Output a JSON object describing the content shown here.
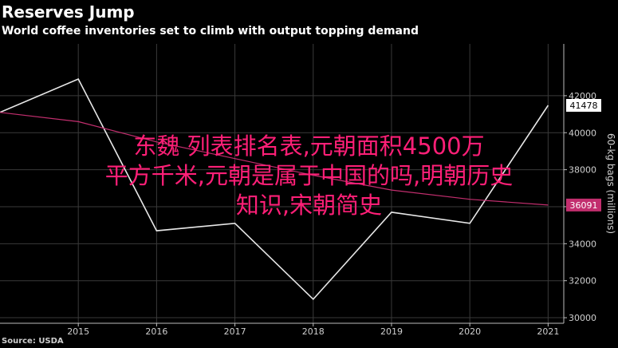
{
  "header": {
    "title": "Reserves Jump",
    "subtitle": "World coffee inventories set to climb with output topping demand"
  },
  "footer": {
    "source": "Source: USDA"
  },
  "overlay": {
    "lines": [
      "东魏 列表排名表,元朝面积4500万",
      "平方千米,元朝是属于中国的吗,明朝历史",
      "知识,宋朝简史"
    ],
    "color": "#ff1f77"
  },
  "chart_data": {
    "type": "line",
    "x": [
      2014,
      2015,
      2016,
      2017,
      2018,
      2019,
      2020,
      2021
    ],
    "xticks": [
      "2015",
      "2016",
      "2017",
      "2018",
      "2019",
      "2020",
      "2021"
    ],
    "xlim": [
      2014,
      2021.2
    ],
    "ylim": [
      29700,
      44800
    ],
    "yticks": [
      "30000",
      "32000",
      "34000",
      "36000",
      "38000",
      "40000",
      "42000"
    ],
    "ylabel": "60-kg bags (millions)",
    "series": [
      {
        "values": [
          41100,
          42900,
          34700,
          35100,
          31000,
          35700,
          35100,
          41478
        ],
        "color": "#e8e8e8",
        "end_label": "41478"
      },
      {
        "values": [
          41100,
          40600,
          39500,
          38600,
          37700,
          36900,
          36400,
          36091
        ],
        "color": "#c22e6e",
        "end_label": "36091"
      }
    ],
    "grid": true,
    "colors": {
      "background": "#000000",
      "grid": "#3a3a3a",
      "axis": "#bdbdbd"
    }
  }
}
